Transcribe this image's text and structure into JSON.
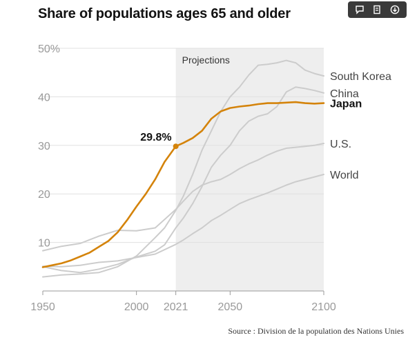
{
  "title": "Share of populations ages 65 and older",
  "source": "Source : Division de la population des Nations Unies",
  "toolbar": {
    "buttons": [
      {
        "name": "comment-icon"
      },
      {
        "name": "document-icon"
      },
      {
        "name": "download-icon"
      }
    ]
  },
  "colors": {
    "highlight": "#d4830a",
    "other": "#cccccc",
    "projection_bg": "#eeeeee",
    "grid": "#e0e0e0"
  },
  "chart_data": {
    "type": "line",
    "title": "Share of populations ages 65 and older",
    "xlim": [
      1950,
      2100
    ],
    "ylim": [
      0,
      50
    ],
    "x_ticks": [
      1950,
      2000,
      2021,
      2050,
      2100
    ],
    "y_ticks": [
      {
        "value": 10,
        "label": "10"
      },
      {
        "value": 20,
        "label": "20"
      },
      {
        "value": 30,
        "label": "30"
      },
      {
        "value": 40,
        "label": "40"
      },
      {
        "value": 50,
        "label": "50%"
      }
    ],
    "grid": true,
    "projection": {
      "start": 2021,
      "end": 2100,
      "label": "Projections"
    },
    "annotation": {
      "x": 2021,
      "y": 29.8,
      "label": "29.8%",
      "series": "Japan"
    },
    "series": [
      {
        "name": "South Korea",
        "highlight": false,
        "x": [
          1950,
          1960,
          1970,
          1980,
          1990,
          2000,
          2010,
          2015,
          2021,
          2025,
          2030,
          2035,
          2040,
          2045,
          2050,
          2055,
          2060,
          2065,
          2070,
          2075,
          2080,
          2085,
          2090,
          2095,
          2100
        ],
        "y": [
          2.9,
          3.3,
          3.5,
          3.8,
          5.0,
          7.2,
          11.0,
          13.0,
          16.6,
          19.5,
          24.0,
          29.0,
          33.0,
          37.0,
          40.0,
          42.0,
          44.5,
          46.5,
          46.7,
          47.0,
          47.5,
          47.0,
          45.5,
          44.8,
          44.3
        ]
      },
      {
        "name": "China",
        "highlight": false,
        "x": [
          1950,
          1960,
          1970,
          1980,
          1990,
          2000,
          2010,
          2015,
          2021,
          2025,
          2030,
          2035,
          2040,
          2045,
          2050,
          2055,
          2060,
          2065,
          2070,
          2075,
          2080,
          2085,
          2090,
          2095,
          2100
        ],
        "y": [
          5.0,
          4.2,
          3.8,
          4.5,
          5.5,
          7.0,
          8.2,
          9.5,
          13.0,
          15.0,
          18.0,
          21.5,
          25.5,
          28.0,
          30.0,
          33.0,
          35.0,
          36.0,
          36.5,
          38.0,
          41.0,
          42.0,
          41.7,
          41.3,
          40.8
        ]
      },
      {
        "name": "Japan",
        "highlight": true,
        "x": [
          1950,
          1955,
          1960,
          1965,
          1970,
          1975,
          1980,
          1985,
          1990,
          1995,
          2000,
          2005,
          2010,
          2015,
          2021,
          2025,
          2030,
          2035,
          2040,
          2045,
          2050,
          2055,
          2060,
          2065,
          2070,
          2075,
          2080,
          2085,
          2090,
          2095,
          2100
        ],
        "y": [
          4.9,
          5.3,
          5.7,
          6.3,
          7.1,
          7.9,
          9.1,
          10.3,
          12.1,
          14.6,
          17.4,
          20.0,
          23.0,
          26.6,
          29.8,
          30.5,
          31.5,
          33.0,
          35.5,
          37.0,
          37.7,
          38.0,
          38.2,
          38.5,
          38.7,
          38.7,
          38.8,
          38.9,
          38.7,
          38.6,
          38.7
        ]
      },
      {
        "name": "U.S.",
        "highlight": false,
        "x": [
          1950,
          1960,
          1970,
          1980,
          1990,
          2000,
          2010,
          2021,
          2025,
          2030,
          2035,
          2040,
          2045,
          2050,
          2055,
          2060,
          2065,
          2070,
          2075,
          2080,
          2085,
          2090,
          2095,
          2100
        ],
        "y": [
          8.3,
          9.2,
          9.8,
          11.3,
          12.5,
          12.4,
          13.0,
          16.8,
          18.5,
          20.5,
          21.8,
          22.5,
          23.0,
          24.0,
          25.2,
          26.2,
          27.0,
          28.0,
          28.8,
          29.4,
          29.6,
          29.8,
          30.0,
          30.4
        ]
      },
      {
        "name": "World",
        "highlight": false,
        "x": [
          1950,
          1960,
          1970,
          1980,
          1990,
          2000,
          2010,
          2021,
          2025,
          2030,
          2035,
          2040,
          2045,
          2050,
          2055,
          2060,
          2065,
          2070,
          2075,
          2080,
          2085,
          2090,
          2095,
          2100
        ],
        "y": [
          5.1,
          5.0,
          5.3,
          5.9,
          6.2,
          6.9,
          7.6,
          9.6,
          10.5,
          11.8,
          13.0,
          14.5,
          15.6,
          16.8,
          18.0,
          18.8,
          19.5,
          20.2,
          21.0,
          21.8,
          22.5,
          23.0,
          23.5,
          24.0
        ]
      }
    ]
  }
}
